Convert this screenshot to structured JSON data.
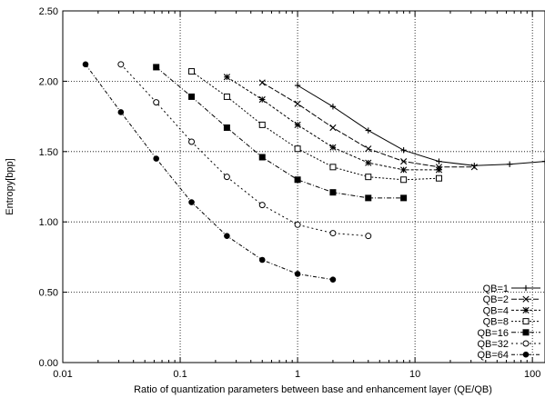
{
  "chart_data": {
    "type": "line",
    "title": "",
    "xlabel": "Ratio of quantization parameters between base and enhancement layer (QE/QB)",
    "ylabel": "Entropy[bpp]",
    "xscale": "log",
    "xlim": [
      0.01,
      128
    ],
    "ylim": [
      0.0,
      2.5
    ],
    "xticks": [
      0.01,
      0.1,
      1,
      10,
      100
    ],
    "xtick_labels": [
      "0.01",
      "0.1",
      "1",
      "10",
      "100"
    ],
    "yticks": [
      0.0,
      0.5,
      1.0,
      1.5,
      2.0,
      2.5
    ],
    "ytick_labels": [
      "0.00",
      "0.50",
      "1.00",
      "1.50",
      "2.00",
      "2.50"
    ],
    "grid": true,
    "legend_position": "bottom-right",
    "series": [
      {
        "name": "QB=1",
        "marker": "plus",
        "dash": "none",
        "x": [
          1,
          2,
          4,
          8,
          16,
          32,
          64,
          128
        ],
        "y": [
          1.97,
          1.82,
          1.65,
          1.51,
          1.43,
          1.4,
          1.41,
          1.43
        ]
      },
      {
        "name": "QB=2",
        "marker": "cross",
        "dash": "6,2",
        "x": [
          0.5,
          1,
          2,
          4,
          8,
          16,
          32
        ],
        "y": [
          1.99,
          1.84,
          1.67,
          1.52,
          1.43,
          1.39,
          1.39
        ]
      },
      {
        "name": "QB=4",
        "marker": "star",
        "dash": "3,2",
        "x": [
          0.25,
          0.5,
          1,
          2,
          4,
          8,
          16
        ],
        "y": [
          2.03,
          1.87,
          1.69,
          1.53,
          1.42,
          1.37,
          1.37
        ]
      },
      {
        "name": "QB=8",
        "marker": "square-open",
        "dash": "2,2",
        "x": [
          0.125,
          0.25,
          0.5,
          1,
          2,
          4,
          8,
          16
        ],
        "y": [
          2.07,
          1.89,
          1.69,
          1.52,
          1.39,
          1.32,
          1.3,
          1.31
        ]
      },
      {
        "name": "QB=16",
        "marker": "square-filled",
        "dash": "5,2,1,2",
        "x": [
          0.0625,
          0.125,
          0.25,
          0.5,
          1,
          2,
          4,
          8
        ],
        "y": [
          2.1,
          1.89,
          1.67,
          1.46,
          1.3,
          1.21,
          1.17,
          1.17
        ]
      },
      {
        "name": "QB=32",
        "marker": "circle-open",
        "dash": "2,3",
        "x": [
          0.03125,
          0.0625,
          0.125,
          0.25,
          0.5,
          1,
          2,
          4
        ],
        "y": [
          2.12,
          1.85,
          1.57,
          1.32,
          1.12,
          0.98,
          0.92,
          0.9
        ]
      },
      {
        "name": "QB=64",
        "marker": "circle-filled",
        "dash": "4,2,1,2",
        "x": [
          0.015625,
          0.03125,
          0.0625,
          0.125,
          0.25,
          0.5,
          1,
          2
        ],
        "y": [
          2.12,
          1.78,
          1.45,
          1.14,
          0.9,
          0.73,
          0.63,
          0.59
        ]
      }
    ]
  }
}
